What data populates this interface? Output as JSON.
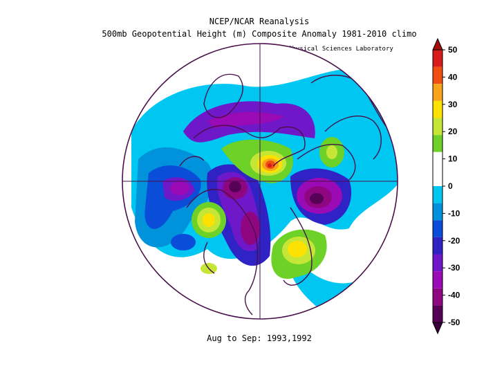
{
  "header": {
    "line1": "NCEP/NCAR Reanalysis",
    "line2": "500mb Geopotential Height (m) Composite Anomaly 1981-2010 climo",
    "lab": "NOAA Physical Sciences Laboratory"
  },
  "footer": {
    "period": "Aug to Sep: 1993,1992"
  },
  "colorbar": {
    "ticks": [
      "50",
      "40",
      "30",
      "20",
      "10",
      "0",
      "-10",
      "-20",
      "-30",
      "-40",
      "-50"
    ],
    "colors": [
      "#d61d1a",
      "#f14f12",
      "#f9a51b",
      "#fde100",
      "#c6e637",
      "#6dd128",
      "#ffffff",
      "#ffffff",
      "#00c7f2",
      "#0093dc",
      "#0a4dd8",
      "#2f23c6",
      "#6e18c9",
      "#9a0ab5",
      "#8f0780",
      "#560056"
    ]
  },
  "map": {
    "projection": "polar stereographic",
    "fill_colors": {
      "neg10": "#00c7f2",
      "neg20": "#0093dc",
      "neg25": "#0a4dd8",
      "neg30": "#2f23c6",
      "neg35": "#6e18c9",
      "neg40": "#9a0ab5",
      "neg45": "#8f0780",
      "neg50": "#560056",
      "pos10": "#6dd128",
      "pos15": "#c6e637",
      "pos20": "#fde100",
      "pos30": "#f9a51b",
      "pos40": "#f14f12",
      "pos50": "#d61d1a"
    },
    "outline_color": "#4a0f4a"
  }
}
